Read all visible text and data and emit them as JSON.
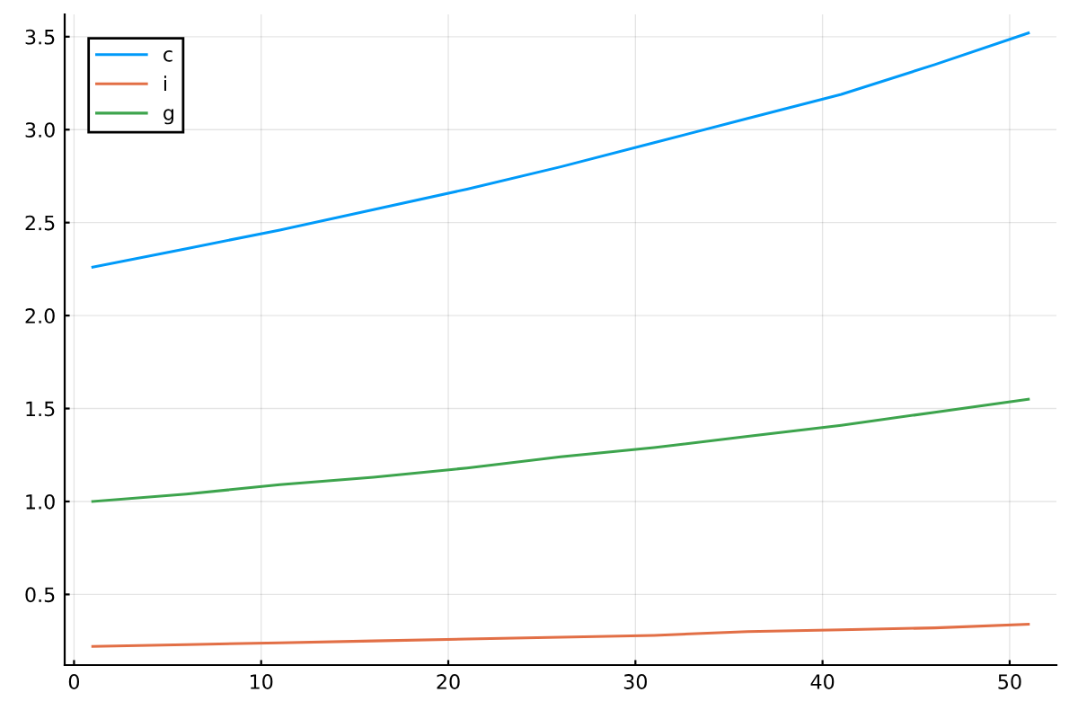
{
  "chart_data": {
    "type": "line",
    "x": [
      1,
      6,
      11,
      16,
      21,
      26,
      31,
      36,
      41,
      46,
      51
    ],
    "series": [
      {
        "name": "c",
        "color": "#009af9",
        "values": [
          2.26,
          2.36,
          2.46,
          2.57,
          2.68,
          2.8,
          2.93,
          3.06,
          3.19,
          3.35,
          3.52
        ]
      },
      {
        "name": "i",
        "color": "#e26f46",
        "values": [
          0.22,
          0.23,
          0.24,
          0.25,
          0.26,
          0.27,
          0.28,
          0.3,
          0.31,
          0.32,
          0.34
        ]
      },
      {
        "name": "g",
        "color": "#3da44d",
        "values": [
          1.0,
          1.04,
          1.09,
          1.13,
          1.18,
          1.24,
          1.29,
          1.35,
          1.41,
          1.48,
          1.55
        ]
      }
    ],
    "xlim": [
      -0.5,
      52.5
    ],
    "xticks": [
      0,
      10,
      20,
      30,
      40,
      50
    ],
    "ylim": [
      0.12,
      3.62
    ],
    "yticks": [
      0.5,
      {
        "value": 1,
        "label": "1.0"
      },
      1.5,
      {
        "value": 2,
        "label": "2.0"
      },
      2.5,
      {
        "value": 3,
        "label": "3.0"
      },
      3.5
    ],
    "grid": true,
    "legend": "top left",
    "marker": "none",
    "line_style": "solid"
  }
}
